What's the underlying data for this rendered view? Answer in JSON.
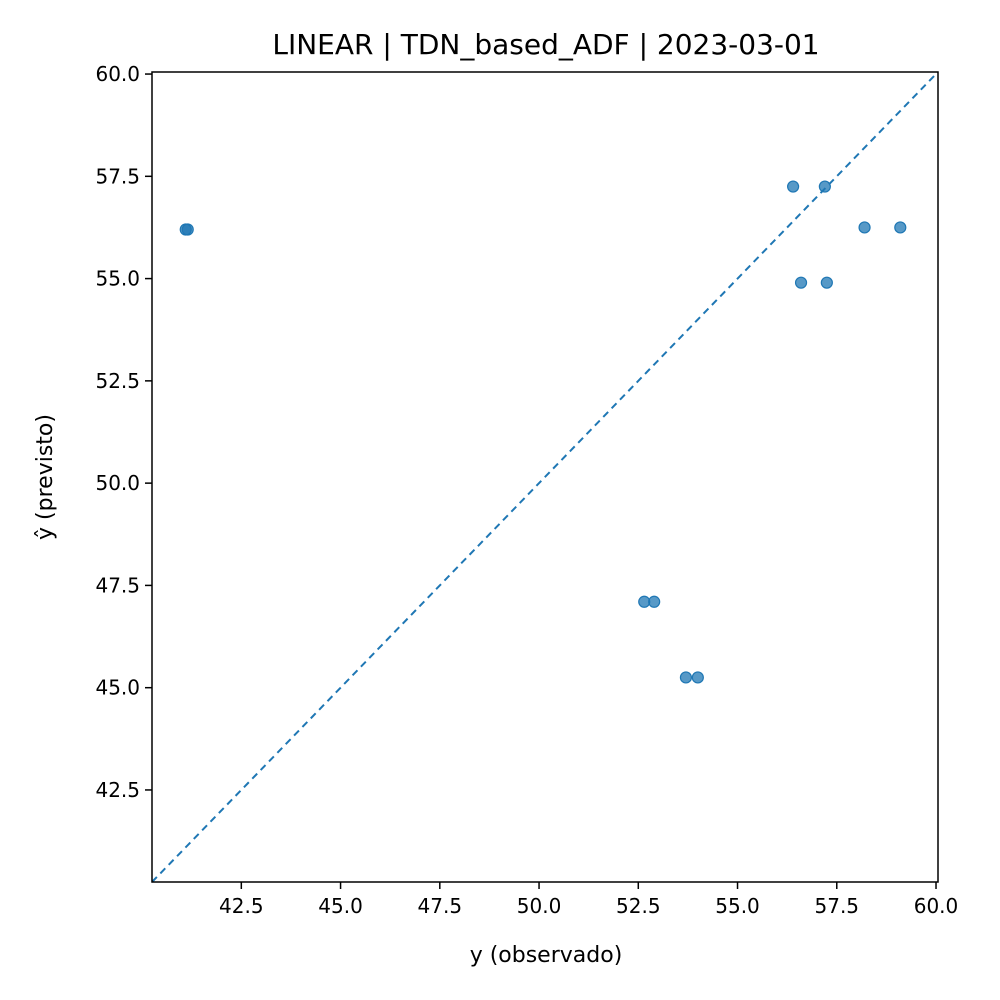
{
  "chart_data": {
    "type": "scatter",
    "title": "LINEAR | TDN_based_ADF | 2023-03-01",
    "xlabel": "y (observado)",
    "ylabel": "ŷ (previsto)",
    "xlim": [
      40.25,
      60.05
    ],
    "ylim": [
      40.25,
      60.05
    ],
    "xticks": [
      "42.5",
      "45.0",
      "47.5",
      "50.0",
      "52.5",
      "55.0",
      "57.5",
      "60.0"
    ],
    "yticks": [
      "42.5",
      "45.0",
      "47.5",
      "50.0",
      "52.5",
      "55.0",
      "57.5",
      "60.0"
    ],
    "grid": false,
    "reference_line": "y = x (dashed)",
    "point_color": "#1f77b4",
    "line_color": "#1f77b4",
    "points": [
      {
        "x": 41.1,
        "y": 56.2
      },
      {
        "x": 41.15,
        "y": 56.2
      },
      {
        "x": 56.4,
        "y": 57.25
      },
      {
        "x": 57.2,
        "y": 57.25
      },
      {
        "x": 58.2,
        "y": 56.25
      },
      {
        "x": 59.1,
        "y": 56.25
      },
      {
        "x": 56.6,
        "y": 54.9
      },
      {
        "x": 57.25,
        "y": 54.9
      },
      {
        "x": 52.65,
        "y": 47.1
      },
      {
        "x": 52.9,
        "y": 47.1
      },
      {
        "x": 53.7,
        "y": 45.25
      },
      {
        "x": 54.0,
        "y": 45.25
      }
    ]
  }
}
